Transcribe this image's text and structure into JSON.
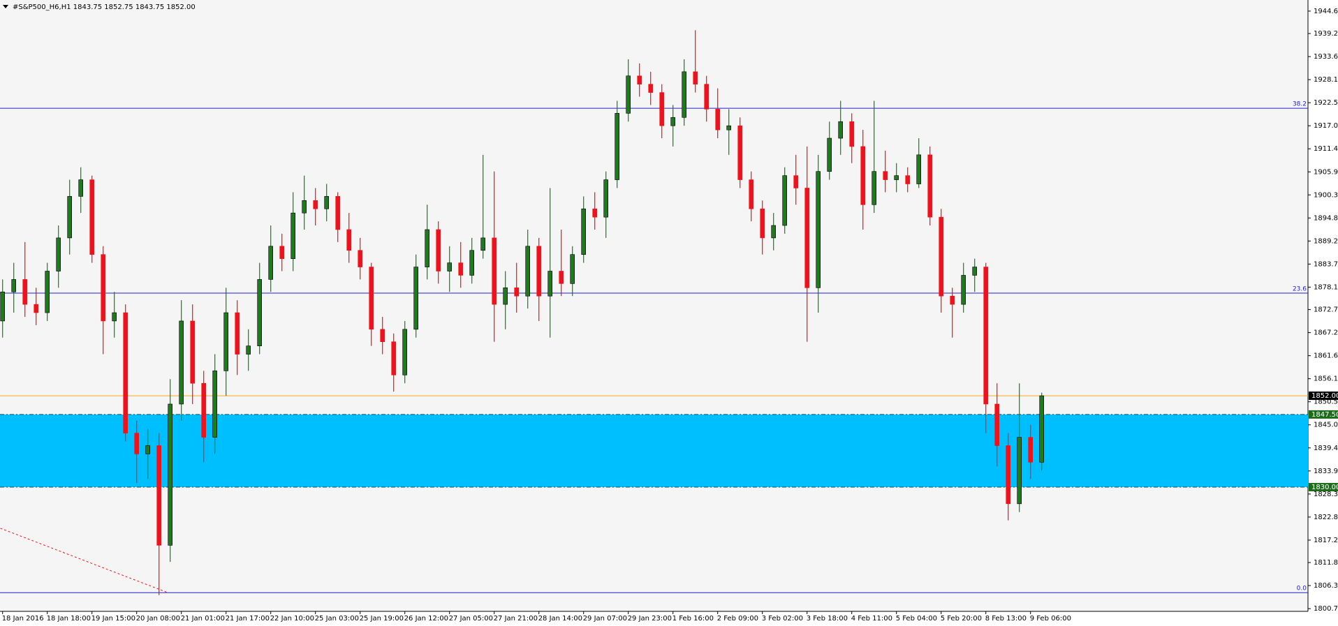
{
  "chart_data": {
    "type": "candlestick",
    "title": "#S&P500_H6,H1  1843.75 1852.75 1843.75 1852.00",
    "categories": [
      "18 Jan 2016",
      null,
      null,
      null,
      "18 Jan 18:00",
      null,
      null,
      null,
      "19 Jan 15:00",
      null,
      null,
      null,
      "20 Jan 08:00",
      null,
      null,
      null,
      "21 Jan 01:00",
      null,
      null,
      null,
      "21 Jan 17:00",
      null,
      null,
      null,
      "22 Jan 10:00",
      null,
      null,
      null,
      "25 Jan 03:00",
      null,
      null,
      null,
      "25 Jan 19:00",
      null,
      null,
      null,
      "26 Jan 12:00",
      null,
      null,
      null,
      "27 Jan 05:00",
      null,
      null,
      null,
      "27 Jan 21:00",
      null,
      null,
      null,
      "28 Jan 14:00",
      null,
      null,
      null,
      "29 Jan 07:00",
      null,
      null,
      null,
      "29 Jan 23:00",
      null,
      null,
      null,
      "1 Feb 16:00",
      null,
      null,
      null,
      "2 Feb 09:00",
      null,
      null,
      null,
      "3 Feb 02:00",
      null,
      null,
      null,
      "3 Feb 18:00",
      null,
      null,
      null,
      "4 Feb 11:00",
      null,
      null,
      null,
      "5 Feb 04:00",
      null,
      null,
      null,
      "5 Feb 20:00",
      null,
      null,
      null,
      "8 Feb 13:00",
      null,
      null,
      null,
      "9 Feb 06:00",
      null
    ],
    "open": [
      1870,
      1877,
      1880,
      1874,
      1872,
      1882,
      1890,
      1900,
      1904,
      1886,
      1870,
      1872,
      1843,
      1838,
      1840,
      1816,
      1850,
      1870,
      1855,
      1842,
      1858,
      1872,
      1862,
      1864,
      1880,
      1888,
      1885,
      1896,
      1899,
      1897,
      1900,
      1892,
      1887,
      1883,
      1868,
      1865,
      1857,
      1868,
      1883,
      1892,
      1882,
      1884,
      1881,
      1887,
      1890,
      1874,
      1878,
      1876,
      1888,
      1876,
      1882,
      1879,
      1886,
      1897,
      1895,
      1904,
      1920,
      1929,
      1927,
      1925,
      1917,
      1919,
      1930,
      1927,
      1921,
      1916,
      1917,
      1904,
      1897,
      1890,
      1893,
      1905,
      1902,
      1878,
      1906,
      1914,
      1918,
      1912,
      1898,
      1906,
      1904,
      1905,
      1903,
      1910,
      1895,
      1876,
      1874,
      1881,
      1883,
      1850,
      1840,
      1826,
      1842,
      1836
    ],
    "high": [
      1880,
      1884,
      1889,
      1878,
      1884,
      1893,
      1904,
      1907,
      1905,
      1888,
      1877,
      1874,
      1846,
      1844,
      1843,
      1856,
      1875,
      1874,
      1858,
      1862,
      1878,
      1875,
      1868,
      1884,
      1893,
      1891,
      1901,
      1905,
      1902,
      1903,
      1901,
      1896,
      1890,
      1884,
      1871,
      1867,
      1870,
      1886,
      1898,
      1894,
      1888,
      1889,
      1890,
      1910,
      1906,
      1882,
      1884,
      1892,
      1890,
      1902,
      1892,
      1888,
      1900,
      1901,
      1906,
      1923,
      1933,
      1932,
      1930,
      1927,
      1922,
      1933,
      1940,
      1929,
      1926,
      1921,
      1919,
      1906,
      1899,
      1896,
      1907,
      1910,
      1912,
      1910,
      1918,
      1923,
      1920,
      1916,
      1923,
      1911,
      1908,
      1907,
      1914,
      1912,
      1897,
      1878,
      1884,
      1885,
      1884,
      1855,
      1843,
      1855,
      1845,
      1852.75
    ],
    "low": [
      1866,
      1872,
      1871,
      1869,
      1870,
      1878,
      1886,
      1896,
      1884,
      1862,
      1866,
      1841,
      1831,
      1832,
      1804,
      1812,
      1846,
      1850,
      1836,
      1838,
      1852,
      1857,
      1858,
      1862,
      1877,
      1882,
      1882,
      1892,
      1893,
      1894,
      1889,
      1884,
      1880,
      1864,
      1862,
      1853,
      1855,
      1866,
      1880,
      1879,
      1877,
      1878,
      1879,
      1885,
      1865,
      1868,
      1872,
      1873,
      1870,
      1866,
      1876,
      1876,
      1884,
      1892,
      1890,
      1902,
      1918,
      1924,
      1922,
      1914,
      1912,
      1917,
      1925,
      1918,
      1914,
      1910,
      1902,
      1894,
      1886,
      1887,
      1891,
      1898,
      1865,
      1872,
      1904,
      1910,
      1908,
      1892,
      1896,
      1901,
      1901,
      1901,
      1902,
      1893,
      1872,
      1866,
      1872,
      1877,
      1843,
      1835,
      1822,
      1824,
      1832,
      1834
    ],
    "close": [
      1877,
      1880,
      1874,
      1872,
      1882,
      1890,
      1900,
      1904,
      1886,
      1870,
      1872,
      1843,
      1838,
      1840,
      1816,
      1850,
      1870,
      1855,
      1842,
      1858,
      1872,
      1862,
      1864,
      1880,
      1888,
      1885,
      1896,
      1899,
      1897,
      1900,
      1892,
      1887,
      1883,
      1868,
      1865,
      1857,
      1868,
      1883,
      1892,
      1882,
      1884,
      1881,
      1887,
      1890,
      1874,
      1878,
      1876,
      1888,
      1876,
      1882,
      1879,
      1886,
      1897,
      1895,
      1904,
      1920,
      1929,
      1927,
      1925,
      1917,
      1919,
      1930,
      1927,
      1921,
      1916,
      1917,
      1904,
      1897,
      1890,
      1893,
      1905,
      1902,
      1878,
      1906,
      1914,
      1918,
      1912,
      1898,
      1906,
      1904,
      1905,
      1903,
      1910,
      1895,
      1876,
      1874,
      1881,
      1883,
      1850,
      1840,
      1826,
      1842,
      1836,
      1852
    ],
    "up_color": "#1e7a1e",
    "down_color": "#e8141e",
    "background": "#f5f5f5",
    "ylim": [
      1800.1,
      1946.65
    ],
    "yticks": [
      {
        "value": 1944.6,
        "label": "1944.60"
      },
      {
        "value": 1939.2,
        "label": "1939.20"
      },
      {
        "value": 1933.65,
        "label": "1933.65"
      },
      {
        "value": 1928.1,
        "label": "1928.10"
      },
      {
        "value": 1922.55,
        "label": "1922.55"
      },
      {
        "value": 1917,
        "label": "1917.00"
      },
      {
        "value": 1911.45,
        "label": "1911.45"
      },
      {
        "value": 1905.9,
        "label": "1905.90"
      },
      {
        "value": 1900.35,
        "label": "1900.35"
      },
      {
        "value": 1894.8,
        "label": "1894.80"
      },
      {
        "value": 1889.25,
        "label": "1889.25"
      },
      {
        "value": 1883.7,
        "label": "1883.70"
      },
      {
        "value": 1878.15,
        "label": "1878.15"
      },
      {
        "value": 1872.75,
        "label": "1872.75"
      },
      {
        "value": 1867.2,
        "label": "1867.20"
      },
      {
        "value": 1861.65,
        "label": "1861.65"
      },
      {
        "value": 1856.1,
        "label": "1856.10"
      },
      {
        "value": 1850.55,
        "label": "1850.55"
      },
      {
        "value": 1845,
        "label": "1845.00"
      },
      {
        "value": 1839.45,
        "label": "1839.45"
      },
      {
        "value": 1833.9,
        "label": "1833.90"
      },
      {
        "value": 1828.35,
        "label": "1828.35"
      },
      {
        "value": 1822.8,
        "label": "1822.80"
      },
      {
        "value": 1817.25,
        "label": "1817.25"
      },
      {
        "value": 1811.85,
        "label": "1811.85"
      },
      {
        "value": 1806.3,
        "label": "1806.30"
      },
      {
        "value": 1800.75,
        "label": "1800.75"
      }
    ],
    "levels": [
      {
        "value": 1921.2,
        "label": "38.2",
        "color": "#2020c8"
      },
      {
        "value": 1876.7,
        "label": "23.6",
        "color": "#2020c8"
      },
      {
        "value": 1804.6,
        "label": "0.0",
        "color": "#2020c8"
      }
    ],
    "zone": {
      "from": 1830,
      "to": 1847.5,
      "color": "#00bfff"
    },
    "bid_line": {
      "value": 1852,
      "color": "#f5a623"
    },
    "price_marks": [
      {
        "value": 1852,
        "label": "1852.00",
        "color": "#000000"
      },
      {
        "value": 1847.5,
        "label": "1847.50",
        "color": "#1e6b1e"
      },
      {
        "value": 1830,
        "label": "1830.00",
        "color": "#1e6b1e"
      }
    ],
    "trendline": {
      "x": [
        -0.2,
        14.8
      ],
      "y": [
        1820.1,
        1804.6
      ],
      "color": "#e8141e"
    }
  }
}
